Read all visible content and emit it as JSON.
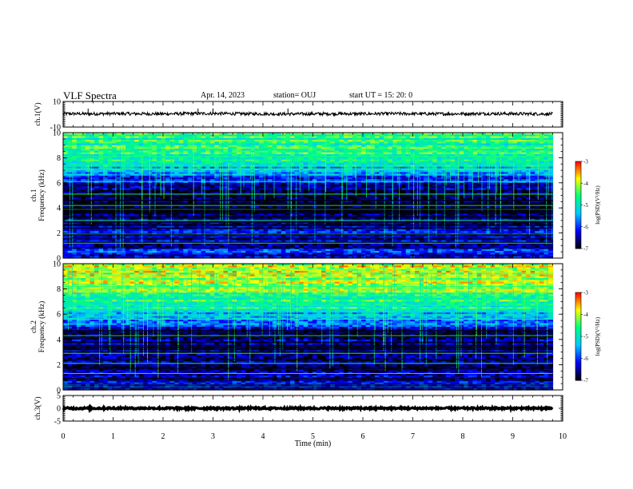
{
  "header": {
    "title": "VLF Spectra",
    "date": "Apr. 14, 2023",
    "station": "station= OUJ",
    "start": "start  UT =   15: 20: 0"
  },
  "chart_data": [
    {
      "type": "line",
      "name": "waveform-ch1",
      "ylabel": "ch.1(V)",
      "ylim": [
        -10,
        10
      ],
      "yticks": [
        10,
        -10
      ],
      "xlim": [
        0,
        10
      ],
      "x": [
        0,
        0.5,
        1,
        1.5,
        2,
        2.5,
        3,
        3.5,
        4,
        4.5,
        5,
        5.5,
        6,
        6.5,
        7,
        7.5,
        8,
        8.5,
        9,
        9.5,
        9.8
      ],
      "y": [
        0.5,
        0.3,
        0.5,
        0.4,
        0.3,
        0.5,
        0.6,
        0.4,
        0.3,
        0.2,
        0.3,
        0.4,
        0.3,
        0.5,
        0.4,
        0.3,
        0.4,
        0.5,
        0.4,
        0.3,
        0.3
      ],
      "envelope": 1.2
    },
    {
      "type": "heatmap",
      "name": "spectrogram-ch1",
      "ylabel": "ch.1\nFrequency (kHz)",
      "ylim": [
        0,
        10
      ],
      "yticks": [
        0,
        2,
        4,
        6,
        8,
        10
      ],
      "xlim": [
        0,
        10
      ],
      "data_end_min": 9.8,
      "colorbar": {
        "label": "log(PSD)(V²/Hz)",
        "range": [
          -7,
          -3
        ],
        "ticks": [
          -3,
          -4,
          -5,
          -6,
          -7
        ]
      },
      "profile": [
        {
          "f": 0.0,
          "v": -6.4
        },
        {
          "f": 0.5,
          "v": -6.1
        },
        {
          "f": 1.0,
          "v": -6.6
        },
        {
          "f": 2.0,
          "v": -6.3
        },
        {
          "f": 3.0,
          "v": -6.7
        },
        {
          "f": 3.5,
          "v": -6.9
        },
        {
          "f": 4.0,
          "v": -7.0
        },
        {
          "f": 5.0,
          "v": -6.8
        },
        {
          "f": 5.8,
          "v": -6.5
        },
        {
          "f": 6.5,
          "v": -5.8
        },
        {
          "f": 7.5,
          "v": -5.0
        },
        {
          "f": 8.5,
          "v": -4.7
        },
        {
          "f": 10.0,
          "v": -4.6
        }
      ],
      "bright_lines_khz": [
        8.1,
        7.1,
        6.1,
        5.1,
        4.2,
        3.9,
        3.0,
        1.9,
        1.2
      ]
    },
    {
      "type": "heatmap",
      "name": "spectrogram-ch2",
      "ylabel": "ch.2\nFrequency (kHz)",
      "ylim": [
        0,
        10
      ],
      "yticks": [
        0,
        2,
        4,
        6,
        8,
        10
      ],
      "xlim": [
        0,
        10
      ],
      "data_end_min": 9.8,
      "colorbar": {
        "label": "log(PSD)(V²/Hz)",
        "range": [
          -7,
          -3
        ],
        "ticks": [
          -3,
          -4,
          -5,
          -6,
          -7
        ]
      },
      "profile": [
        {
          "f": 0.0,
          "v": -6.0
        },
        {
          "f": 0.5,
          "v": -6.3
        },
        {
          "f": 1.5,
          "v": -6.7
        },
        {
          "f": 2.5,
          "v": -6.4
        },
        {
          "f": 3.5,
          "v": -6.8
        },
        {
          "f": 4.5,
          "v": -6.5
        },
        {
          "f": 5.5,
          "v": -5.6
        },
        {
          "f": 6.5,
          "v": -4.9
        },
        {
          "f": 7.5,
          "v": -4.4
        },
        {
          "f": 8.5,
          "v": -4.1
        },
        {
          "f": 10.0,
          "v": -3.9
        }
      ],
      "bright_lines_khz": [
        8.2,
        6.7,
        5.6,
        4.3,
        2.9,
        2.1,
        1.3
      ]
    },
    {
      "type": "line",
      "name": "waveform-ch3",
      "ylabel": "ch.3(V)",
      "ylim": [
        -5,
        5
      ],
      "yticks": [
        5,
        0,
        -5
      ],
      "xlim": [
        0,
        10
      ],
      "x": [
        0,
        9.8
      ],
      "y": [
        0,
        0
      ],
      "envelope": 0.35
    }
  ],
  "x_axis": {
    "label": "Time  (min)",
    "ticks": [
      0,
      1,
      2,
      3,
      4,
      5,
      6,
      7,
      8,
      9,
      10
    ]
  },
  "colormap": [
    "#000000",
    "#0000ff",
    "#00c8ff",
    "#00ff80",
    "#ffff00",
    "#ff0000",
    "#ffffff"
  ]
}
